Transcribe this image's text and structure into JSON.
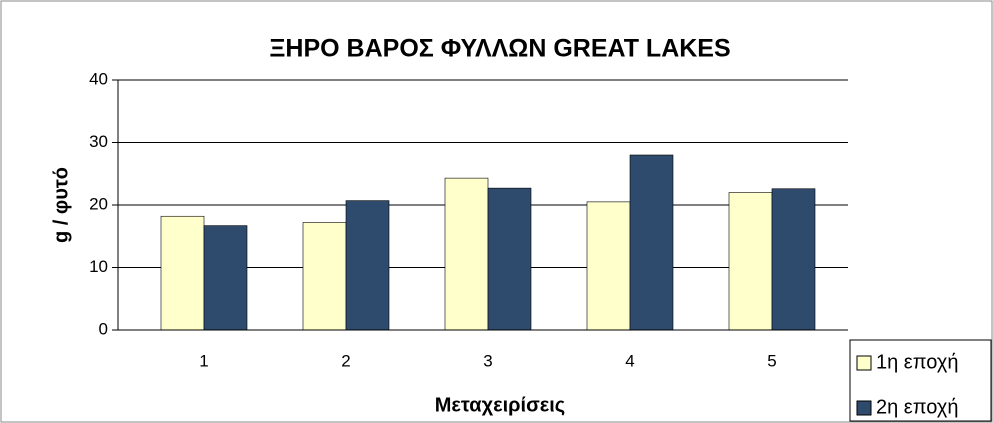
{
  "chart_data": {
    "type": "bar",
    "title": "ΞΗΡΟ ΒΑΡΟΣ ΦΥΛΛΩΝ GREAT LAKES",
    "x_label": "Μεταχειρίσεις",
    "y_label": "g / φυτό",
    "categories": [
      "1",
      "2",
      "3",
      "4",
      "5"
    ],
    "series": [
      {
        "name": "1η εποχή",
        "color": "#ffffcc",
        "values": [
          18.2,
          17.2,
          24.3,
          20.5,
          22.0
        ]
      },
      {
        "name": "2η εποχή",
        "color": "#2e4b6e",
        "values": [
          16.7,
          20.7,
          22.7,
          28.0,
          22.6
        ]
      }
    ],
    "ylim": [
      0,
      40
    ],
    "yticks": [
      0,
      10,
      20,
      30,
      40
    ],
    "grid": true,
    "legend": "bottom-right"
  }
}
